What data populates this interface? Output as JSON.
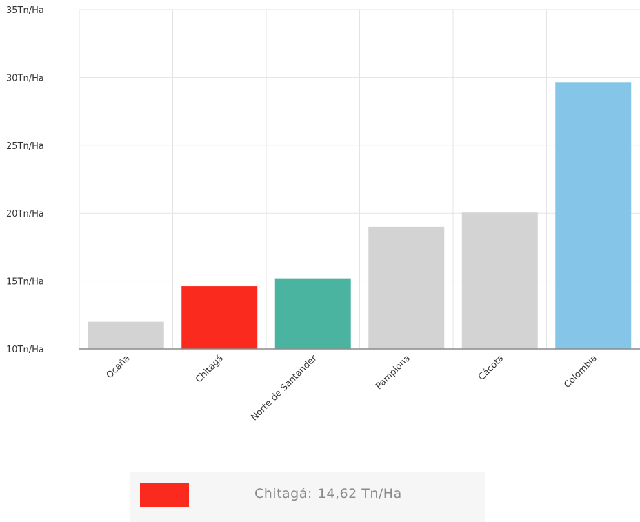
{
  "chart_data": {
    "type": "bar",
    "categories": [
      "Ocaña",
      "Chitagá",
      "Norte de Santander",
      "Pamplona",
      "Cácota",
      "Colombia"
    ],
    "values": [
      12.0,
      14.62,
      15.2,
      19.0,
      20.05,
      29.65
    ],
    "bar_colors": [
      "#d3d3d3",
      "#fb2a1e",
      "#4ab4a0",
      "#d3d3d3",
      "#d3d3d3",
      "#84c5e8"
    ],
    "ylim": [
      10,
      35
    ],
    "yticks": [
      {
        "value": 10,
        "label": "10Tn/Ha"
      },
      {
        "value": 15,
        "label": "15Tn/Ha"
      },
      {
        "value": 20,
        "label": "20Tn/Ha"
      },
      {
        "value": 25,
        "label": "25Tn/Ha"
      },
      {
        "value": 30,
        "label": "30Tn/Ha"
      },
      {
        "value": 35,
        "label": "35Tn/Ha"
      }
    ],
    "grid": true,
    "title": "",
    "xlabel": "",
    "ylabel": ""
  },
  "legend": {
    "name": "Chitagá:",
    "value": "14,62 Tn/Ha",
    "color": "#fb2a1e"
  }
}
